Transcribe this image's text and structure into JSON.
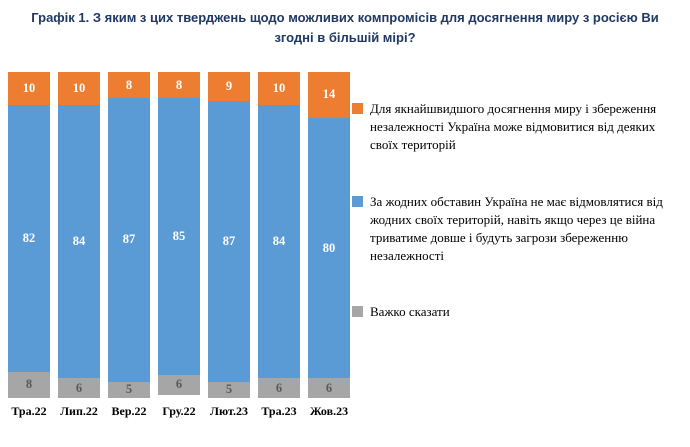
{
  "title": "Графік 1. З яким з цих тверджень щодо можливих компромісів для досягнення миру з росією Ви згодні в більшій мірі?",
  "chart_data": {
    "type": "bar",
    "stacked": true,
    "title": "Графік 1. З яким з цих тверджень щодо можливих компромісів для досягнення миру з росією Ви згодні в більшій мірі?",
    "categories": [
      "Тра.22",
      "Лип.22",
      "Вер.22",
      "Гру.22",
      "Лют.23",
      "Тра.23",
      "Жов.23"
    ],
    "series": [
      {
        "name": "Для якнайшвидшого досягнення миру і збереження незалежності Україна може відмовитися від деяких своїх територій",
        "color": "#ed7d31",
        "label_color": "#ffffff",
        "values": [
          10,
          10,
          8,
          8,
          9,
          10,
          14
        ]
      },
      {
        "name": "За жодних обставин Україна не має відмовлятися від жодних своїх територій, навіть якщо через це війна триватиме довше і будуть загрози збереженню незалежності",
        "color": "#5b9bd5",
        "label_color": "#ffffff",
        "values": [
          82,
          84,
          87,
          85,
          87,
          84,
          80
        ]
      },
      {
        "name": "Важко сказати",
        "color": "#a6a6a6",
        "label_color": "#595959",
        "values": [
          8,
          6,
          5,
          6,
          5,
          6,
          6
        ]
      }
    ],
    "ylim": [
      0,
      100
    ],
    "xlabel": "",
    "ylabel": "",
    "grid": false,
    "legend_position": "right"
  }
}
